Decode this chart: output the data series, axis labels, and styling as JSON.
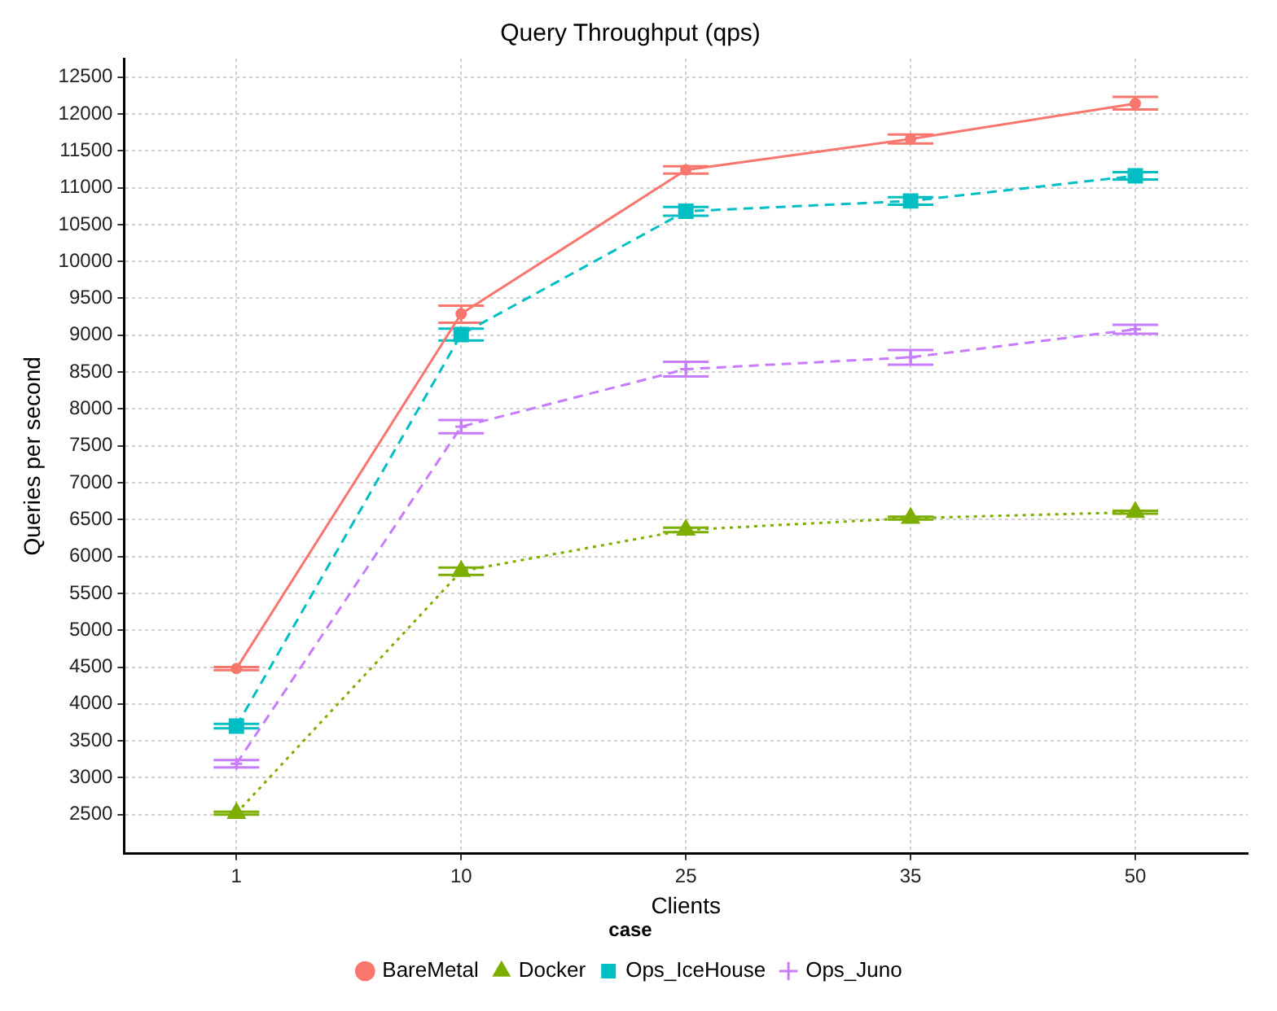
{
  "chart_data": {
    "type": "line",
    "title": "Query Throughput (qps)",
    "xlabel": "Clients",
    "ylabel": "Queries per second",
    "legend_title": "case",
    "legend": "bottom",
    "grid": true,
    "categories": [
      "1",
      "10",
      "25",
      "35",
      "50"
    ],
    "ylim": [
      1970,
      12750
    ],
    "yticks": [
      2500,
      3000,
      3500,
      4000,
      4500,
      5000,
      5500,
      6000,
      6500,
      7000,
      7500,
      8000,
      8500,
      9000,
      9500,
      10000,
      10500,
      11000,
      11500,
      12000,
      12500
    ],
    "series": [
      {
        "name": "BareMetal",
        "color": "#f8766d",
        "marker": "circle",
        "line_style": "solid",
        "values": [
          4480,
          9290,
          11240,
          11660,
          12140
        ],
        "errors": [
          20,
          [
            9170,
            9400
          ],
          50,
          60,
          [
            12060,
            12230
          ]
        ]
      },
      {
        "name": "Docker",
        "color": "#7cae00",
        "marker": "triangle",
        "line_style": "dotted",
        "values": [
          2520,
          5800,
          6360,
          6520,
          6600
        ],
        "errors": [
          20,
          50,
          30,
          20,
          20
        ]
      },
      {
        "name": "Ops_IceHouse",
        "color": "#00bfc4",
        "marker": "square",
        "line_style": "dashed",
        "values": [
          3700,
          9010,
          10680,
          10820,
          11160
        ],
        "errors": [
          30,
          80,
          60,
          50,
          50
        ]
      },
      {
        "name": "Ops_Juno",
        "color": "#c77cff",
        "marker": "cross",
        "line_style": "dashed",
        "values": [
          3190,
          7760,
          8540,
          8700,
          9080
        ],
        "errors": [
          50,
          90,
          100,
          100,
          60
        ]
      }
    ]
  }
}
